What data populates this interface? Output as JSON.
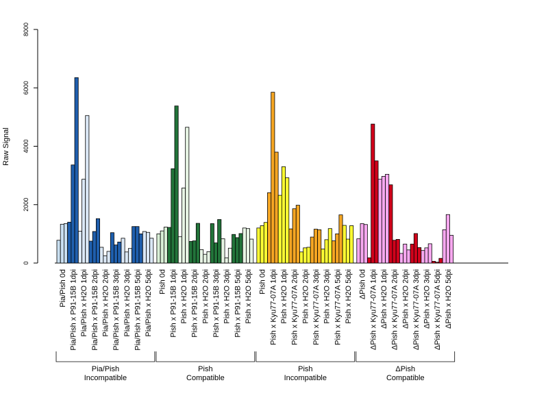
{
  "chart_data": {
    "type": "bar",
    "ylabel": "Raw Signal",
    "ylim": [
      0,
      8000
    ],
    "yticks": [
      0,
      2000,
      4000,
      6000,
      8000
    ],
    "grid": false,
    "bars_per_category": 3,
    "categories": [
      "Pia/Pish 0d",
      "Pia/Pish x P91-15B 1dpi",
      "Pia/Pish x H2O 1dpi",
      "Pia/Pish x P91-15B 2dpi",
      "Pia/Pish x H2O 2dpi",
      "Pia/Pish x P91-15B 3dpi",
      "Pia/Pish x H2O 3dpi",
      "Pia/Pish x P91-15B 5dpi",
      "Pia/Pish x H2O 5dpi",
      "Pish 0d",
      "Pish x P91-15B 1dpi",
      "Pish x H2O 1dpi",
      "Pish x P91-15B 2dpi",
      "Pish x H2O 2dpi",
      "Pish x P91-15B 3dpi",
      "Pish x H2O 3dpi",
      "Pish x P91-15B 5dpi",
      "Pish x H2O 5dpi",
      "Pish 0d",
      "Pish x Kyu77-07A 1dpi",
      "Pish x H2O 1dpi",
      "Pish x Kyu77-07A 2dpi",
      "Pish x H2O 2dpi",
      "Pish x Kyu77-07A 3dpi",
      "Pish x H2O 3dpi",
      "Pish x Kyu77-07A 5dpi",
      "Pish x H2O 5dpi",
      "ΔPish 0d",
      "ΔPish x Kyu77-07A 1dpi",
      "ΔPish x H2O 1dpi",
      "ΔPish x Kyu77-07A 2dpi",
      "ΔPish x H2O 2dpi",
      "ΔPish x Kyu77-07A 3dpi",
      "ΔPish x H2O 3dpi",
      "ΔPish x Kyu77-07A 5dpi",
      "ΔPish x H2O 5dpi"
    ],
    "values": [
      [
        780,
        1330,
        1350
      ],
      [
        1400,
        3360,
        6350
      ],
      [
        1090,
        2870,
        5050
      ],
      [
        750,
        1080,
        1520
      ],
      [
        540,
        250,
        400
      ],
      [
        1040,
        620,
        720
      ],
      [
        850,
        380,
        500
      ],
      [
        1250,
        1250,
        1000
      ],
      [
        1080,
        1050,
        850
      ],
      [
        1000,
        1100,
        1230
      ],
      [
        1220,
        3230,
        5380
      ],
      [
        900,
        2570,
        4650
      ],
      [
        740,
        760,
        1360
      ],
      [
        460,
        300,
        390
      ],
      [
        1350,
        690,
        1490
      ],
      [
        830,
        180,
        510
      ],
      [
        980,
        870,
        1010
      ],
      [
        1200,
        1180,
        820
      ],
      [
        1200,
        1280,
        1390
      ],
      [
        2410,
        5850,
        3800
      ],
      [
        2320,
        3300,
        2920
      ],
      [
        1170,
        1860,
        1980
      ],
      [
        380,
        520,
        540
      ],
      [
        890,
        1160,
        1140
      ],
      [
        480,
        800,
        1180
      ],
      [
        760,
        1000,
        1650
      ],
      [
        1290,
        820,
        1280
      ],
      [
        830,
        1350,
        1320
      ],
      [
        180,
        4760,
        3500
      ],
      [
        2870,
        2970,
        3040
      ],
      [
        2680,
        780,
        810
      ],
      [
        330,
        650,
        450
      ],
      [
        650,
        1010,
        530
      ],
      [
        430,
        520,
        660
      ],
      [
        60,
        30,
        160
      ],
      [
        1140,
        1660,
        950
      ]
    ],
    "category_colors": [
      "#c9dff1",
      "#1f5fae",
      "#dbe8f6",
      "#1f5fae",
      "#dbe8f6",
      "#1f5fae",
      "#dbe8f6",
      "#1f5fae",
      "#dbe8f6",
      "#d9efd6",
      "#22743a",
      "#e7f4e4",
      "#22743a",
      "#e7f4e4",
      "#22743a",
      "#e7f4e4",
      "#22743a",
      "#e7f4e4",
      "#ffff33",
      "#f5a623",
      "#ffff33",
      "#f5a623",
      "#ffff33",
      "#f5a623",
      "#ffff33",
      "#f5a623",
      "#ffff33",
      "#f7a8f0",
      "#d0021b",
      "#f7a8f0",
      "#d0021b",
      "#f7a8f0",
      "#d0021b",
      "#f7a8f0",
      "#d0021b",
      "#f7a8f0"
    ],
    "groups": [
      {
        "line1": "Pia/Pish",
        "line2": "Incompatible",
        "start": 0,
        "end": 8
      },
      {
        "line1": "Pish",
        "line2": "Compatible",
        "start": 9,
        "end": 17
      },
      {
        "line1": "Pish",
        "line2": "Incompatible",
        "start": 18,
        "end": 26
      },
      {
        "line1": "ΔPish",
        "line2": "Compatible",
        "start": 27,
        "end": 35
      }
    ]
  }
}
